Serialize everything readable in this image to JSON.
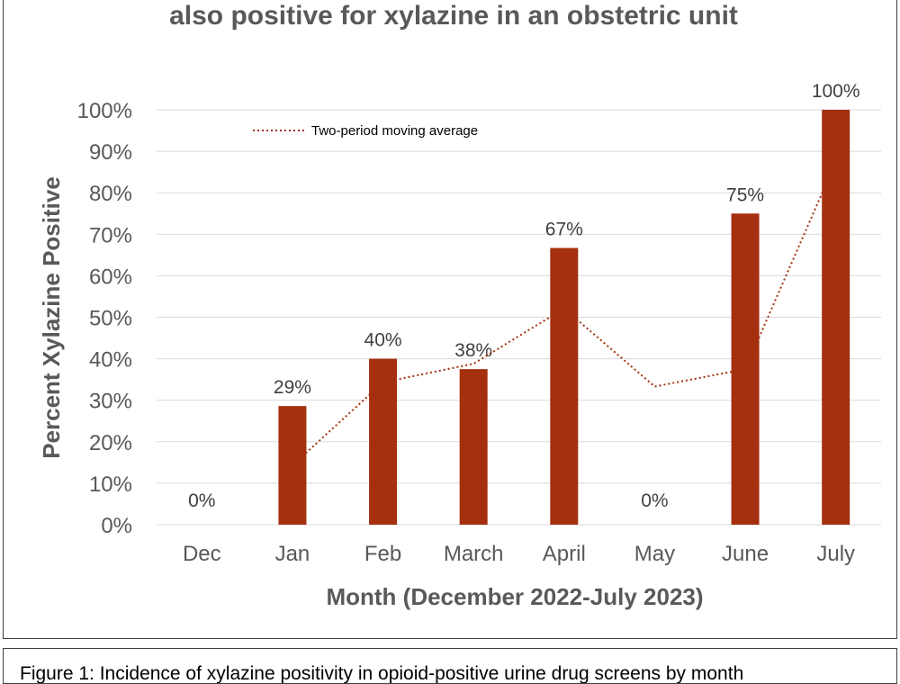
{
  "colors": {
    "bar": "#a5300f",
    "trendline": "#a5300f",
    "grid": "#d9d9d9",
    "axis_text": "#595959"
  },
  "chart_data": {
    "type": "bar",
    "title": "also positive for xylazine in an obstetric unit",
    "xlabel": "Month (December 2022-July 2023)",
    "ylabel": "Percent Xylazine Positive",
    "categories": [
      "Dec",
      "Jan",
      "Feb",
      "March",
      "April",
      "May",
      "June",
      "July"
    ],
    "values": [
      0,
      28.6,
      40,
      37.5,
      66.7,
      0,
      75,
      100
    ],
    "data_labels": [
      "0%",
      "29%",
      "40%",
      "38%",
      "67%",
      "0%",
      "75%",
      "100%"
    ],
    "yticks": [
      "0%",
      "10%",
      "20%",
      "30%",
      "40%",
      "50%",
      "60%",
      "70%",
      "80%",
      "90%",
      "100%"
    ],
    "ylim": [
      0,
      100
    ],
    "grid": true,
    "legend": {
      "placement": "top-left",
      "entries": [
        "Two-period moving average"
      ]
    },
    "trendline": {
      "name": "Two-period moving average",
      "style": "dotted",
      "values": [
        null,
        14.3,
        34.3,
        38.8,
        52.1,
        33.3,
        37.5,
        87.5
      ]
    }
  },
  "caption": "Figure 1: Incidence of xylazine positivity in opioid-positive urine drug screens by month"
}
